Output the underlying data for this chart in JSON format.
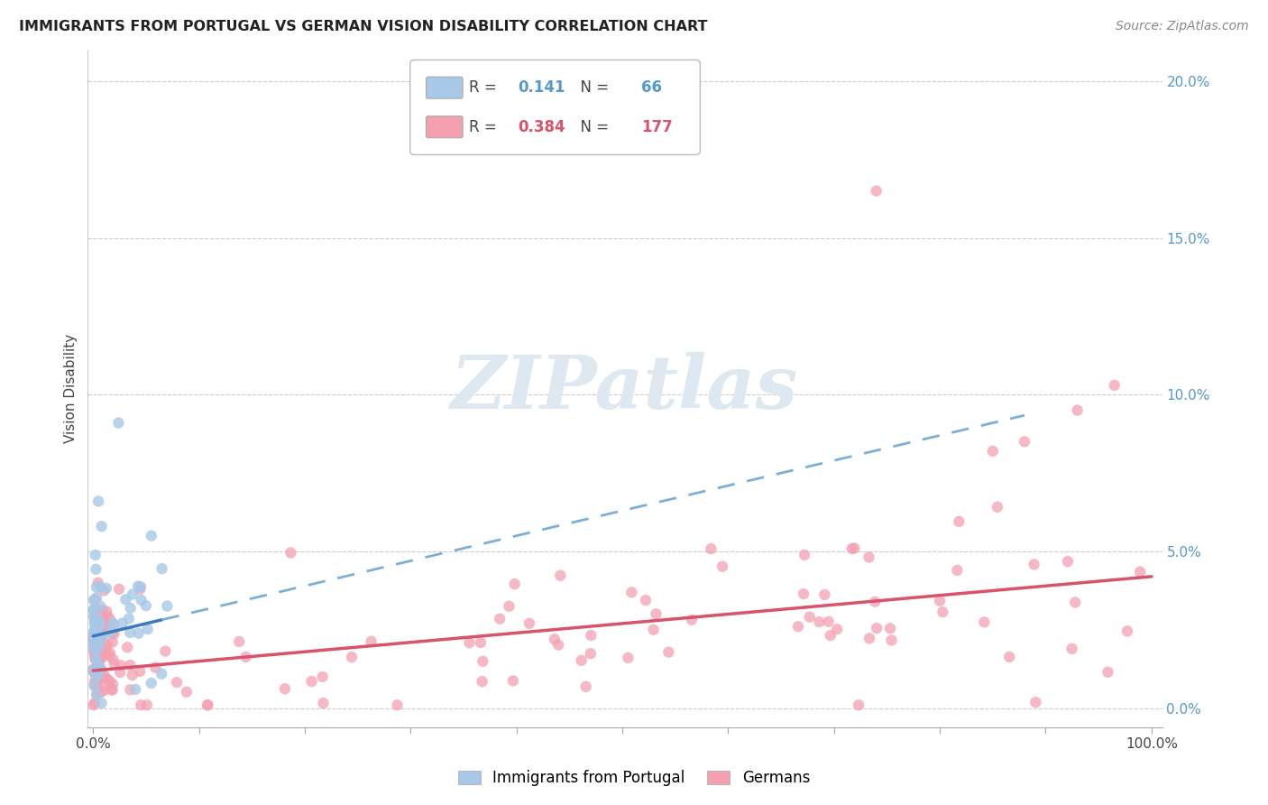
{
  "title": "IMMIGRANTS FROM PORTUGAL VS GERMAN VISION DISABILITY CORRELATION CHART",
  "source": "Source: ZipAtlas.com",
  "ylabel": "Vision Disability",
  "legend_labels": [
    "Immigrants from Portugal",
    "Germans"
  ],
  "color_blue": "#a8c8e8",
  "color_pink": "#f4a0b0",
  "trend_blue_solid": "#3a7abf",
  "trend_blue_dash": "#7ab0d8",
  "trend_pink": "#d9536a",
  "r_blue": "0.141",
  "n_blue": "66",
  "r_pink": "0.384",
  "n_pink": "177",
  "watermark": "ZIPatlas",
  "ylim_max": 0.21,
  "yticks": [
    0.0,
    0.05,
    0.1,
    0.15,
    0.2
  ],
  "ytick_labels": [
    "0.0%",
    "5.0%",
    "10.0%",
    "15.0%",
    "20.0%"
  ]
}
